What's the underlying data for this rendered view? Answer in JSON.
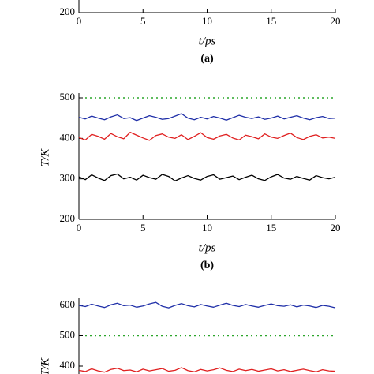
{
  "chart_data": [
    {
      "type": "line",
      "xlabel": "t/ps",
      "caption": "(a)",
      "xlim": [
        0,
        20
      ],
      "xticks": [
        0,
        5,
        10,
        15,
        20
      ],
      "ylim": [
        200,
        500
      ],
      "yticks": [
        200
      ],
      "series": []
    },
    {
      "type": "line",
      "xlabel": "t/ps",
      "ylabel": "T/K",
      "caption": "(b)",
      "xlim": [
        0,
        20
      ],
      "xticks": [
        0,
        5,
        10,
        15,
        20
      ],
      "ylim": [
        200,
        500
      ],
      "yticks": [
        200,
        300,
        400,
        500
      ],
      "reference": {
        "value": 500,
        "color": "#2aa52a"
      },
      "x": [
        0,
        0.5,
        1,
        1.5,
        2,
        2.5,
        3,
        3.5,
        4,
        4.5,
        5,
        5.5,
        6,
        6.5,
        7,
        7.5,
        8,
        8.5,
        9,
        9.5,
        10,
        10.5,
        11,
        11.5,
        12,
        12.5,
        13,
        13.5,
        14,
        14.5,
        15,
        15.5,
        16,
        16.5,
        17,
        17.5,
        18,
        18.5,
        19,
        19.5,
        20
      ],
      "series": [
        {
          "color": "#1f2fa8",
          "values": [
            452,
            448,
            455,
            450,
            446,
            453,
            458,
            449,
            451,
            444,
            450,
            456,
            452,
            447,
            449,
            455,
            461,
            450,
            446,
            452,
            448,
            454,
            450,
            445,
            451,
            457,
            452,
            449,
            453,
            447,
            450,
            455,
            448,
            452,
            456,
            450,
            446,
            451,
            454,
            449,
            450
          ]
        },
        {
          "color": "#e02020",
          "values": [
            402,
            396,
            410,
            405,
            398,
            412,
            404,
            399,
            415,
            408,
            401,
            395,
            407,
            411,
            403,
            400,
            409,
            397,
            405,
            414,
            402,
            398,
            406,
            410,
            401,
            396,
            408,
            404,
            399,
            411,
            403,
            400,
            407,
            413,
            402,
            397,
            405,
            409,
            401,
            403,
            400
          ]
        },
        {
          "color": "#000000",
          "values": [
            305,
            298,
            310,
            302,
            296,
            308,
            312,
            300,
            304,
            297,
            309,
            303,
            299,
            311,
            306,
            295,
            302,
            308,
            301,
            297,
            306,
            310,
            299,
            303,
            307,
            298,
            304,
            309,
            300,
            296,
            305,
            311,
            302,
            299,
            306,
            301,
            297,
            308,
            303,
            300,
            304
          ]
        }
      ]
    },
    {
      "type": "line",
      "ylabel": "T/K",
      "xlim": [
        0,
        20
      ],
      "ylim": [
        200,
        600
      ],
      "yticks": [
        400,
        500,
        600
      ],
      "reference": {
        "value": 500,
        "color": "#2aa52a"
      },
      "x": [
        0,
        0.5,
        1,
        1.5,
        2,
        2.5,
        3,
        3.5,
        4,
        4.5,
        5,
        5.5,
        6,
        6.5,
        7,
        7.5,
        8,
        8.5,
        9,
        9.5,
        10,
        10.5,
        11,
        11.5,
        12,
        12.5,
        13,
        13.5,
        14,
        14.5,
        15,
        15.5,
        16,
        16.5,
        17,
        17.5,
        18,
        18.5,
        19,
        19.5,
        20
      ],
      "series": [
        {
          "color": "#1f2fa8",
          "values": [
            600,
            596,
            604,
            598,
            593,
            602,
            607,
            599,
            601,
            594,
            598,
            605,
            610,
            597,
            592,
            600,
            606,
            599,
            595,
            603,
            598,
            594,
            601,
            607,
            600,
            596,
            603,
            598,
            594,
            600,
            605,
            599,
            597,
            602,
            595,
            601,
            598,
            593,
            600,
            597,
            592
          ]
        },
        {
          "color": "#e02020",
          "values": [
            386,
            382,
            391,
            384,
            380,
            389,
            393,
            385,
            387,
            381,
            390,
            384,
            388,
            392,
            383,
            386,
            395,
            385,
            381,
            389,
            384,
            388,
            394,
            386,
            382,
            390,
            385,
            389,
            383,
            387,
            391,
            384,
            388,
            382,
            386,
            390,
            385,
            381,
            388,
            384,
            383
          ]
        }
      ]
    }
  ]
}
